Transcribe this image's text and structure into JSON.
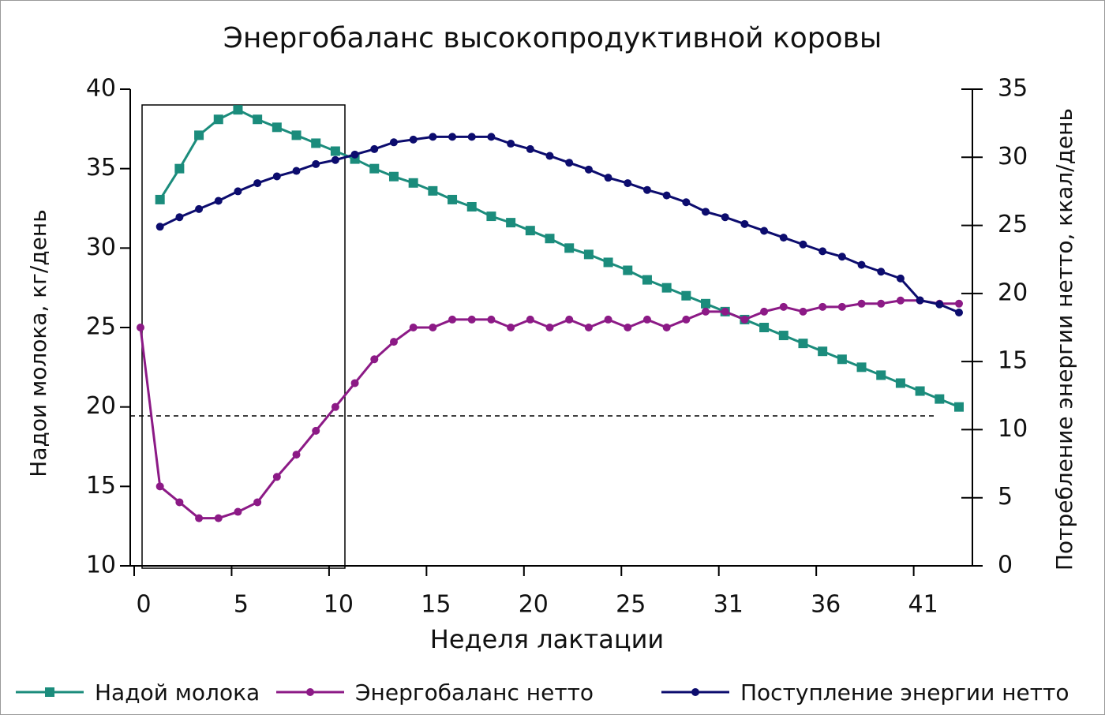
{
  "chart_data": {
    "type": "line",
    "title": "Энергобаланс высокопродуктивной коровы",
    "xlabel": "Неделя лактации",
    "ylabel": "Надои молока, кг/день",
    "y2label": "Потребление энергии нетто, ккал/день",
    "categories": [
      "0",
      null,
      null,
      null,
      null,
      "5",
      null,
      null,
      null,
      null,
      "10",
      null,
      null,
      null,
      null,
      "15",
      null,
      null,
      null,
      null,
      "20",
      null,
      null,
      null,
      null,
      "25",
      null,
      null,
      null,
      null,
      "31",
      null,
      null,
      null,
      null,
      "36",
      null,
      null,
      null,
      null,
      "41",
      null,
      null
    ],
    "ylim": [
      10,
      40
    ],
    "yticks": [
      10,
      15,
      20,
      25,
      30,
      35,
      40
    ],
    "y2lim": [
      0,
      35
    ],
    "y2ticks": [
      0,
      5,
      10,
      15,
      20,
      25,
      30,
      35
    ],
    "legend": "bottom",
    "series": [
      {
        "name": "Надой молока",
        "color": "#1b8c7c",
        "marker": "square",
        "values": [
          null,
          33.05,
          35.0,
          37.1,
          38.1,
          38.7,
          38.1,
          37.6,
          37.1,
          36.6,
          36.1,
          35.6,
          35.0,
          34.5,
          34.1,
          33.6,
          33.05,
          32.6,
          32.0,
          31.6,
          31.1,
          30.6,
          30.0,
          29.6,
          29.1,
          28.6,
          28.0,
          27.5,
          27.0,
          26.5,
          26.0,
          25.5,
          25.0,
          24.5,
          24.0,
          23.5,
          23.0,
          22.5,
          22.0,
          21.5,
          21.0,
          20.5,
          20.0
        ]
      },
      {
        "name": "Энергобаланс нетто",
        "color": "#8c1a86",
        "marker": "circle",
        "values": [
          25.0,
          15.0,
          14.0,
          13.0,
          13.0,
          13.4,
          14.0,
          15.6,
          17.0,
          18.5,
          20.0,
          21.5,
          23.0,
          24.1,
          25.0,
          25.0,
          25.5,
          25.5,
          25.5,
          25.0,
          25.5,
          25.0,
          25.5,
          25.0,
          25.5,
          25.0,
          25.5,
          25.0,
          25.5,
          26.0,
          26.0,
          25.5,
          26.0,
          26.3,
          26.0,
          26.3,
          26.3,
          26.5,
          26.5,
          26.7,
          26.7,
          26.5,
          26.5
        ]
      },
      {
        "name": "Поступление энергии нетто",
        "color": "#0c0c6e",
        "marker": "circle",
        "axis": "y2",
        "values": [
          null,
          24.9,
          25.6,
          26.2,
          26.8,
          27.5,
          28.1,
          28.6,
          29.0,
          29.5,
          29.8,
          30.2,
          30.6,
          31.1,
          31.3,
          31.5,
          31.5,
          31.5,
          31.5,
          31.0,
          30.6,
          30.1,
          29.6,
          29.1,
          28.5,
          28.1,
          27.6,
          27.2,
          26.7,
          26.0,
          25.6,
          25.1,
          24.6,
          24.1,
          23.6,
          23.1,
          22.7,
          22.1,
          21.6,
          21.1,
          19.5,
          19.2,
          18.6
        ]
      }
    ]
  }
}
